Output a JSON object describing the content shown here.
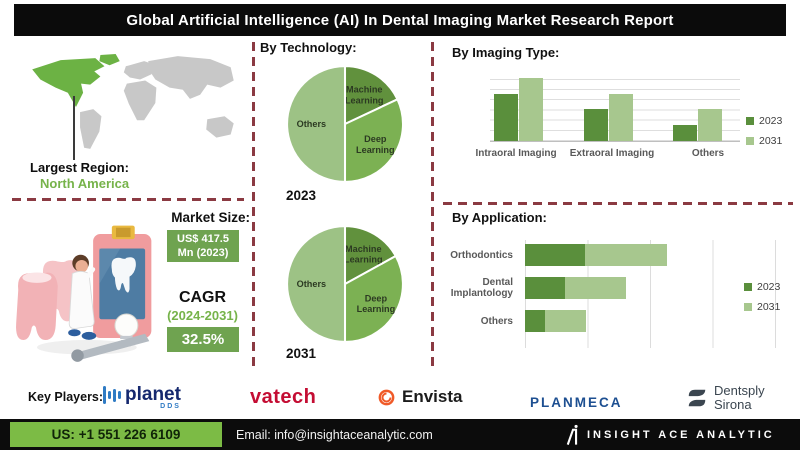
{
  "title": "Global Artificial Intelligence (AI) In Dental Imaging Market Research Report",
  "colors": {
    "dark_green": "#5a8f3c",
    "medium_green": "#7cb153",
    "light_green": "#9dc285",
    "bar_light_green": "#a7c78e",
    "map_highlight": "#6cb244",
    "accent_text_green": "#76b34a",
    "box_green": "#6fa350",
    "footer_green": "#7cbb45",
    "dash_maroon": "#8b3a42"
  },
  "map_section": {
    "pointer_label": "Largest Region:",
    "region": "North America"
  },
  "market_size": {
    "label": "Market Size:",
    "value_line1": "US$ 417.5",
    "value_line2": "Mn (2023)",
    "cagr_label": "CAGR",
    "cagr_period": "(2024-2031)",
    "cagr_value": "32.5%"
  },
  "chart_data": [
    {
      "type": "pie",
      "title": "By Technology:",
      "year_label": "2023",
      "labels": [
        "Machine Learning",
        "Deep Learning",
        "Others"
      ],
      "values": [
        18,
        32,
        50
      ],
      "colors": [
        "#61913d",
        "#7cb153",
        "#9dc285"
      ],
      "legend_position": "none"
    },
    {
      "type": "pie",
      "title": "By Technology:",
      "year_label": "2031",
      "labels": [
        "Machine Learning",
        "Deep Learning",
        "Others"
      ],
      "values": [
        17,
        33,
        50
      ],
      "colors": [
        "#61913d",
        "#7cb153",
        "#9dc285"
      ],
      "legend_position": "none"
    },
    {
      "type": "bar",
      "title": "By Imaging Type:",
      "categories": [
        "Intraoral Imaging",
        "Extraoral Imaging",
        "Others"
      ],
      "series": [
        {
          "name": "2023",
          "color": "#5a8f3c",
          "values": [
            60,
            40,
            20
          ]
        },
        {
          "name": "2031",
          "color": "#a7c78e",
          "values": [
            80,
            60,
            40
          ]
        }
      ],
      "ylim": [
        0,
        90
      ],
      "grid": true,
      "legend_position": "right"
    },
    {
      "type": "bar-horizontal-stacked",
      "title": "By Application:",
      "categories": [
        "Orthodontics",
        "Dental Implantology",
        "Others"
      ],
      "series": [
        {
          "name": "2023",
          "color": "#5a8f3c",
          "values": [
            60,
            40,
            20
          ]
        },
        {
          "name": "2031",
          "color": "#a7c78e",
          "values": [
            82,
            61,
            41
          ]
        }
      ],
      "xlim": [
        0,
        250
      ],
      "grid": true,
      "legend_position": "right"
    }
  ],
  "key_players": {
    "label": "Key Players:",
    "players": [
      {
        "name": "planet",
        "sub": "DDS"
      },
      {
        "name": "vatech"
      },
      {
        "name": "Envista"
      },
      {
        "name": "PLANMECA"
      },
      {
        "name": "Dentsply",
        "name2": "Sirona"
      }
    ]
  },
  "footer": {
    "phone": "US: +1 551 226 6109",
    "email": "Email: info@insightaceanalytic.com",
    "brand": "INSIGHT ACE ANALYTIC"
  }
}
